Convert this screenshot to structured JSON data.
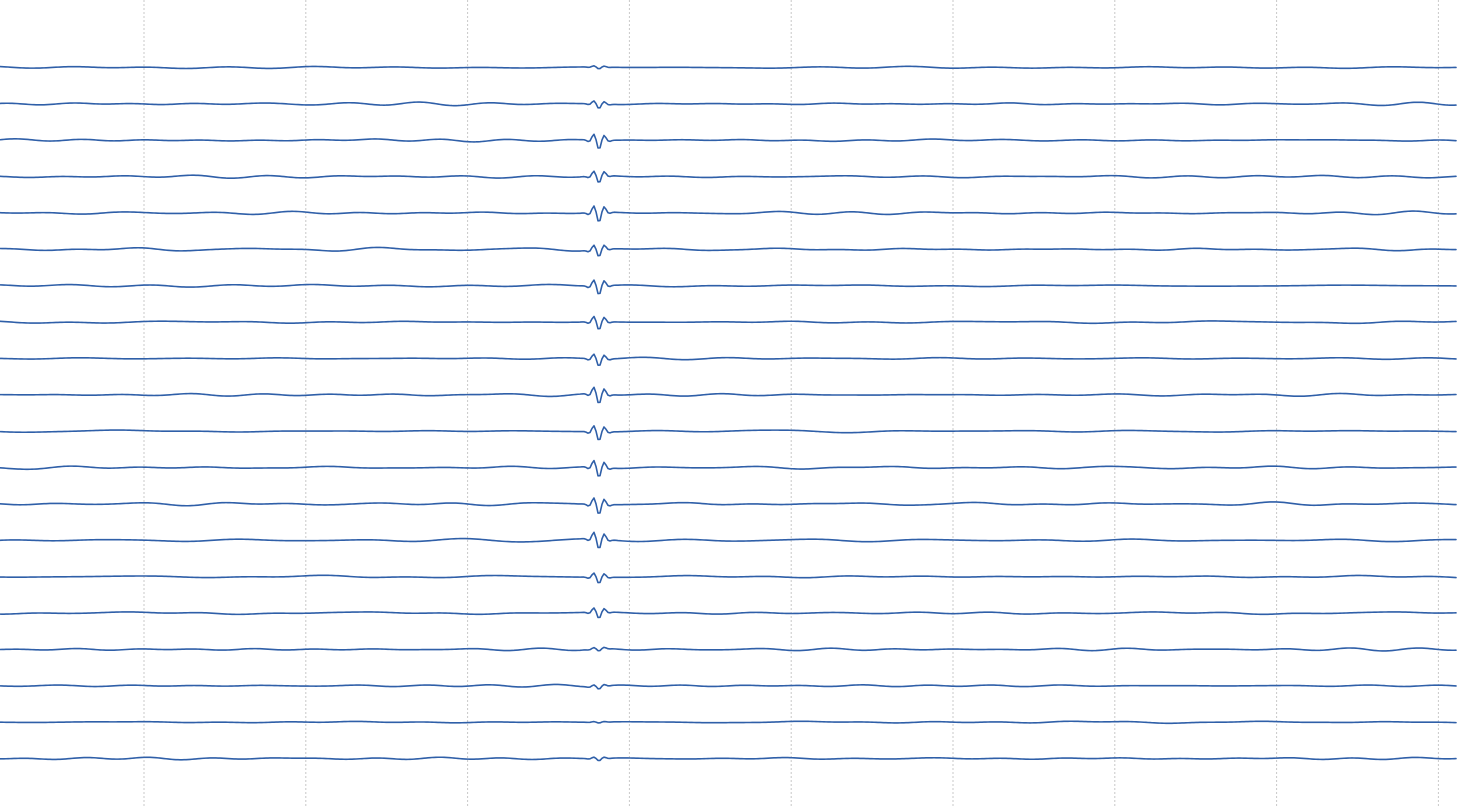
{
  "theme": {
    "background": "#ffffff",
    "trace_color": "#2f5fa8",
    "grid_color": "#c8c8c8"
  },
  "chart_data": {
    "type": "line",
    "title": "",
    "xlabel": "",
    "ylabel": "",
    "grid": "vertical-dotted",
    "legend": "none",
    "x_grid_count": 9,
    "channel_count": 20,
    "event": {
      "description_visible": false,
      "position_fraction": 0.408,
      "channel_amplitudes": [
        0.2,
        0.5,
        1.0,
        0.8,
        1.1,
        0.8,
        1.0,
        0.9,
        0.8,
        1.1,
        1.0,
        1.1,
        1.1,
        1.1,
        0.7,
        0.7,
        0.25,
        0.3,
        0.1,
        0.25
      ]
    }
  }
}
